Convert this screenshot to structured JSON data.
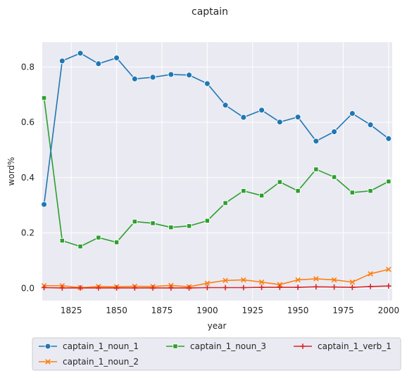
{
  "chart_data": {
    "type": "line",
    "title": "captain",
    "xlabel": "year",
    "ylabel": "word%",
    "xlim": [
      1809,
      2002
    ],
    "ylim": [
      -0.045,
      0.89
    ],
    "xticks": [
      1825,
      1850,
      1875,
      1900,
      1925,
      1950,
      1975,
      2000
    ],
    "yticks": [
      0.0,
      0.2,
      0.4,
      0.6,
      0.8
    ],
    "xtick_labels": [
      "1825",
      "1850",
      "1875",
      "1900",
      "1925",
      "1950",
      "1975",
      "2000"
    ],
    "ytick_labels": [
      "0.0",
      "0.2",
      "0.4",
      "0.6",
      "0.8"
    ],
    "grid": true,
    "legend_position": "bottom",
    "x": [
      1810,
      1820,
      1830,
      1840,
      1850,
      1860,
      1870,
      1880,
      1890,
      1900,
      1910,
      1920,
      1930,
      1940,
      1950,
      1960,
      1970,
      1980,
      1990,
      2000
    ],
    "series": [
      {
        "name": "captain_1_noun_1",
        "color": "#1f77b4",
        "marker": "circle",
        "values": [
          0.303,
          0.822,
          0.85,
          0.812,
          0.833,
          0.757,
          0.763,
          0.773,
          0.771,
          0.74,
          0.662,
          0.618,
          0.644,
          0.601,
          0.619,
          0.532,
          0.566,
          0.632,
          0.591,
          0.541
        ]
      },
      {
        "name": "captain_1_noun_2",
        "color": "#ff7f0e",
        "marker": "x",
        "values": [
          0.009,
          0.009,
          0.002,
          0.006,
          0.005,
          0.007,
          0.006,
          0.01,
          0.005,
          0.018,
          0.028,
          0.03,
          0.022,
          0.013,
          0.03,
          0.034,
          0.03,
          0.022,
          0.052,
          0.068
        ]
      },
      {
        "name": "captain_1_noun_3",
        "color": "#2ca02c",
        "marker": "square",
        "values": [
          0.688,
          0.172,
          0.151,
          0.183,
          0.166,
          0.241,
          0.235,
          0.22,
          0.225,
          0.244,
          0.308,
          0.352,
          0.335,
          0.384,
          0.352,
          0.43,
          0.402,
          0.346,
          0.352,
          0.386
        ]
      },
      {
        "name": "captain_1_verb_1",
        "color": "#d62728",
        "marker": "plus",
        "values": [
          0.002,
          0.001,
          0.001,
          0.001,
          0.001,
          0.001,
          0.001,
          0.001,
          0.001,
          0.002,
          0.002,
          0.002,
          0.003,
          0.003,
          0.003,
          0.005,
          0.004,
          0.003,
          0.006,
          0.008
        ]
      }
    ],
    "legend_order": [
      0,
      2,
      3,
      1
    ]
  }
}
